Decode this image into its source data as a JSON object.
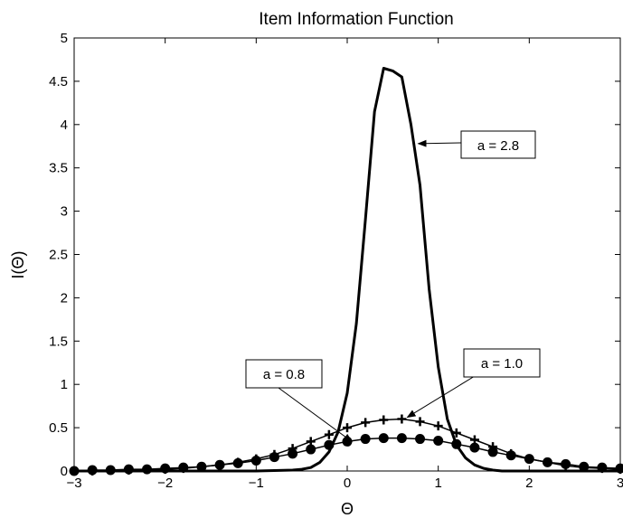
{
  "chart_data": {
    "type": "line",
    "title": "Item Information Function",
    "xlabel": "Θ",
    "ylabel": "I(Θ)",
    "xlim": [
      -3,
      3
    ],
    "ylim": [
      0,
      5
    ],
    "xticks": [
      -3,
      -2,
      -1,
      0,
      1,
      2,
      3
    ],
    "xtick_labels": [
      "−3",
      "−2",
      "−1",
      "0",
      "1",
      "2",
      "3"
    ],
    "yticks": [
      0,
      0.5,
      1,
      1.5,
      2,
      2.5,
      3,
      3.5,
      4,
      4.5,
      5
    ],
    "ytick_labels": [
      "0",
      "0.5",
      "1",
      "1.5",
      "2",
      "2.5",
      "3",
      "3.5",
      "4",
      "4.5",
      "5"
    ],
    "grid": false,
    "color": "#000000",
    "series": [
      {
        "name": "a = 2.8",
        "marker": "none",
        "x": [
          -3.0,
          -1.0,
          -0.6,
          -0.5,
          -0.4,
          -0.3,
          -0.2,
          -0.1,
          0.0,
          0.1,
          0.2,
          0.3,
          0.4,
          0.5,
          0.6,
          0.7,
          0.8,
          0.9,
          1.0,
          1.1,
          1.2,
          1.3,
          1.4,
          1.5,
          1.6,
          1.7,
          2.0,
          3.0
        ],
        "y": [
          0.0,
          0.0,
          0.01,
          0.02,
          0.04,
          0.1,
          0.22,
          0.45,
          0.9,
          1.7,
          2.9,
          4.15,
          4.65,
          4.62,
          4.55,
          4.0,
          3.3,
          2.1,
          1.2,
          0.6,
          0.3,
          0.15,
          0.07,
          0.03,
          0.01,
          0.0,
          0.0,
          0.0
        ]
      },
      {
        "name": "a = 1.0",
        "marker": "plus",
        "x": [
          -3.0,
          -2.8,
          -2.6,
          -2.4,
          -2.2,
          -2.0,
          -1.8,
          -1.6,
          -1.4,
          -1.2,
          -1.0,
          -0.8,
          -0.6,
          -0.4,
          -0.2,
          0.0,
          0.2,
          0.4,
          0.6,
          0.8,
          1.0,
          1.2,
          1.4,
          1.6,
          1.8,
          2.0,
          2.2,
          2.4,
          2.6,
          2.8,
          3.0
        ],
        "y": [
          0.0,
          0.0,
          0.01,
          0.01,
          0.02,
          0.02,
          0.03,
          0.05,
          0.07,
          0.1,
          0.14,
          0.19,
          0.26,
          0.34,
          0.42,
          0.5,
          0.56,
          0.59,
          0.6,
          0.57,
          0.52,
          0.44,
          0.36,
          0.28,
          0.2,
          0.14,
          0.1,
          0.06,
          0.04,
          0.03,
          0.02
        ]
      },
      {
        "name": "a = 0.8",
        "marker": "circle",
        "x": [
          -3.0,
          -2.8,
          -2.6,
          -2.4,
          -2.2,
          -2.0,
          -1.8,
          -1.6,
          -1.4,
          -1.2,
          -1.0,
          -0.8,
          -0.6,
          -0.4,
          -0.2,
          0.0,
          0.2,
          0.4,
          0.6,
          0.8,
          1.0,
          1.2,
          1.4,
          1.6,
          1.8,
          2.0,
          2.2,
          2.4,
          2.6,
          2.8,
          3.0
        ],
        "y": [
          0.0,
          0.01,
          0.01,
          0.02,
          0.02,
          0.03,
          0.04,
          0.05,
          0.07,
          0.09,
          0.12,
          0.16,
          0.2,
          0.25,
          0.3,
          0.34,
          0.37,
          0.38,
          0.38,
          0.37,
          0.35,
          0.31,
          0.27,
          0.22,
          0.18,
          0.14,
          0.1,
          0.08,
          0.05,
          0.04,
          0.03
        ]
      }
    ],
    "annotations": [
      {
        "text": "a = 2.8",
        "arrow_to": [
          0.78,
          3.78
        ]
      },
      {
        "text": "a = 1.0",
        "arrow_to": [
          0.66,
          0.62
        ]
      },
      {
        "text": "a = 0.8",
        "arrow_to": [
          0.05,
          0.34
        ]
      }
    ]
  }
}
